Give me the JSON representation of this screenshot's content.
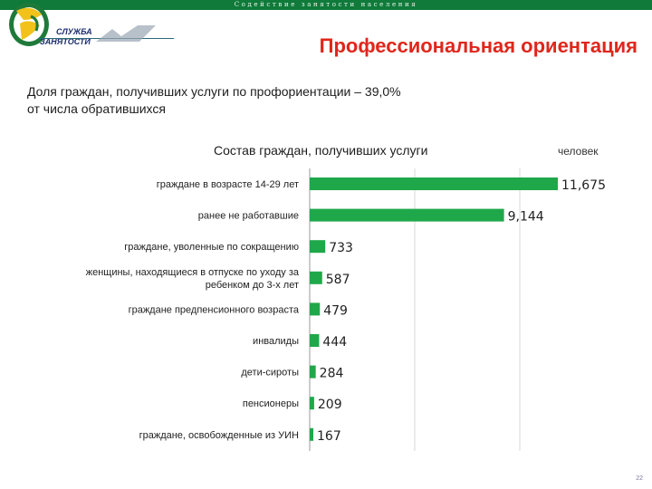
{
  "header": {
    "slogan": "Содействие занятости населения",
    "logo_line1": "СЛУЖБА",
    "logo_line2": "ЗАНЯТОСТИ",
    "title": "Профессиональная ориентация"
  },
  "subtitle": {
    "line1": "Доля граждан, получивших услуги по профориентации – 39,0%",
    "line2": "от числа обратившихся"
  },
  "colors": {
    "bar": "#1fa84a",
    "accent": "#e0261b",
    "brand": "#0f7a3a"
  },
  "chart_data": {
    "type": "bar",
    "orientation": "horizontal",
    "title": "Состав граждан, получивших услуги",
    "units": "человек",
    "grid": true,
    "categories": [
      [
        "граждане в возрасте 14-29 лет"
      ],
      [
        "ранее не работавшие"
      ],
      [
        "граждане, уволенные по сокращению"
      ],
      [
        "женщины, находящиеся в отпуске по уходу за",
        "ребенком до 3-х лет"
      ],
      [
        "граждане предпенсионного возраста"
      ],
      [
        "инвалиды"
      ],
      [
        "дети-сироты"
      ],
      [
        "пенсионеры"
      ],
      [
        "граждане, освобожденные из УИН"
      ]
    ],
    "values": [
      11675,
      9144,
      733,
      587,
      479,
      444,
      284,
      209,
      167
    ],
    "value_labels": [
      "11,675",
      "9,144",
      "733",
      "587",
      "479",
      "444",
      "284",
      "209",
      "167"
    ],
    "xlim": [
      0,
      12000
    ]
  },
  "page_number": "22"
}
